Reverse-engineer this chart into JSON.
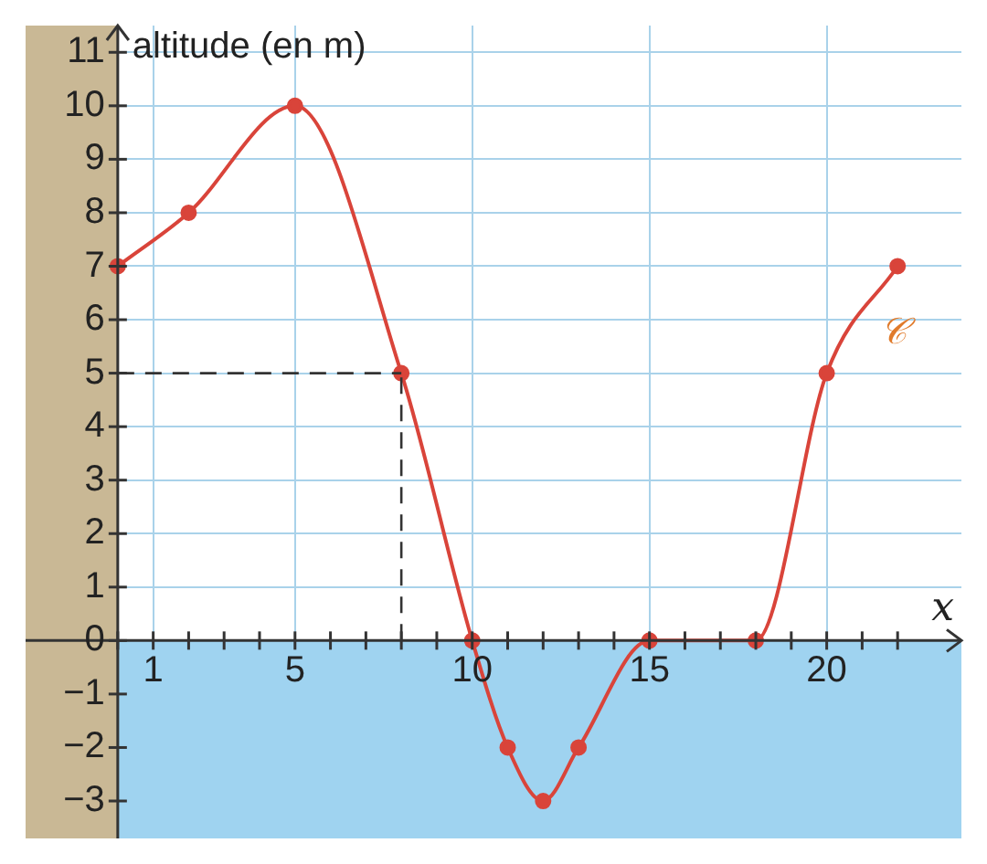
{
  "chart_data": {
    "type": "line",
    "xlabel": "x",
    "ylabel": "altitude (en m)",
    "x": [
      0,
      2,
      5,
      8,
      10,
      11,
      12,
      13,
      15,
      18,
      20,
      22
    ],
    "series": [
      {
        "name": "𝒞",
        "color": "#d9443a",
        "values": [
          7,
          8,
          10,
          5,
          0,
          -2,
          -3,
          -2,
          0,
          0,
          5,
          7
        ]
      }
    ],
    "xlim": [
      -2.6,
      23.8
    ],
    "ylim": [
      -3.7,
      11.5
    ],
    "xticks": [
      {
        "value": 0,
        "label": null
      },
      1,
      {
        "value": 2,
        "label": null
      },
      {
        "value": 3,
        "label": null
      },
      {
        "value": 4,
        "label": null
      },
      5,
      {
        "value": 6,
        "label": null
      },
      {
        "value": 7,
        "label": null
      },
      {
        "value": 8,
        "label": null
      },
      {
        "value": 9,
        "label": null
      },
      10,
      {
        "value": 11,
        "label": null
      },
      {
        "value": 12,
        "label": null
      },
      {
        "value": 13,
        "label": null
      },
      {
        "value": 14,
        "label": null
      },
      15,
      {
        "value": 16,
        "label": null
      },
      {
        "value": 17,
        "label": null
      },
      {
        "value": 18,
        "label": null
      },
      {
        "value": 19,
        "label": null
      },
      20,
      {
        "value": 21,
        "label": null
      },
      {
        "value": 22,
        "label": null
      }
    ],
    "yticks": [
      -3,
      -2,
      -1,
      0,
      1,
      2,
      3,
      4,
      5,
      6,
      7,
      8,
      9,
      10,
      11
    ],
    "ref_lines": [
      {
        "axis": "y",
        "value": 5,
        "color": "#333333",
        "line_style": "dashed"
      },
      {
        "axis": "x",
        "value": 8,
        "color": "#333333",
        "line_style": "dashed"
      }
    ],
    "bands": [
      {
        "axis": "y",
        "from": -3.7,
        "to": 0,
        "color": "#9fd3f0"
      },
      {
        "axis": "x",
        "from": -2.6,
        "to": 0,
        "color": "#c9b895"
      }
    ],
    "grid": true,
    "marker": "circle",
    "line_style": "solid",
    "legend": false
  }
}
